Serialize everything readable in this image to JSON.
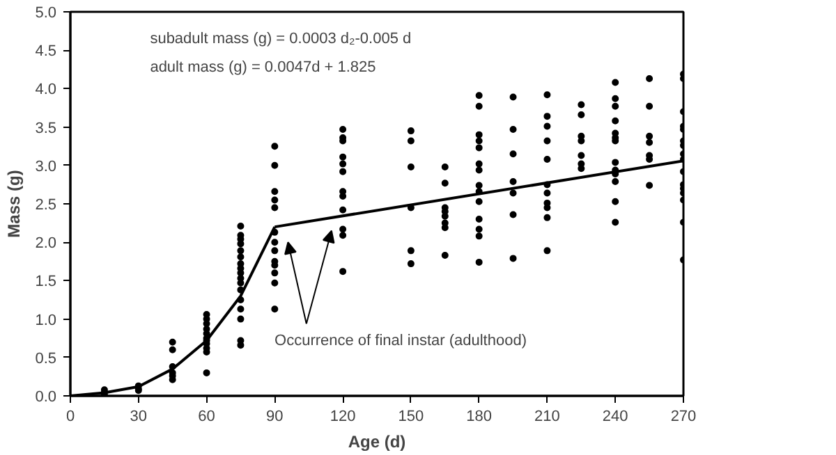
{
  "chart_data": {
    "type": "scatter",
    "xlabel": "Age (d)",
    "ylabel": "Mass (g)",
    "xlim": [
      0,
      270
    ],
    "ylim": [
      0,
      5
    ],
    "xticks": [
      0,
      30,
      60,
      90,
      120,
      150,
      180,
      210,
      240,
      270
    ],
    "yticks": [
      {
        "value": 0,
        "label": "0.0"
      },
      {
        "value": 0.5,
        "label": "0.5"
      },
      {
        "value": 1,
        "label": "1.0"
      },
      {
        "value": 1.5,
        "label": "1.5"
      },
      {
        "value": 2,
        "label": "2.0"
      },
      {
        "value": 2.5,
        "label": "2.5"
      },
      {
        "value": 3,
        "label": "3.0"
      },
      {
        "value": 3.5,
        "label": "3.5"
      },
      {
        "value": 4,
        "label": "4.0"
      },
      {
        "value": 4.5,
        "label": "4.5"
      },
      {
        "value": 5,
        "label": "5.0"
      }
    ],
    "grid": false,
    "annotations": [
      {
        "text": "subadult mass (g) = 0.0003 d₂-0.005 d"
      },
      {
        "text": "adult mass (g) = 0.0047d + 1.825"
      },
      "Occurrence of final instar (adulthood)"
    ],
    "series": [
      {
        "marker": "circle",
        "color": "#000000",
        "x": [
          15,
          15,
          15,
          30,
          30,
          30,
          45,
          45,
          45,
          45,
          45,
          45,
          60,
          60,
          60,
          60,
          60,
          60,
          60,
          60,
          60,
          60,
          60,
          75,
          75,
          75,
          75,
          75,
          75,
          75,
          75,
          75,
          75,
          75,
          75,
          75,
          75,
          75,
          75,
          75,
          90,
          90,
          90,
          90,
          90,
          90,
          90,
          90,
          90,
          90,
          90,
          90,
          90,
          120,
          120,
          120,
          120,
          120,
          120,
          120,
          120,
          120,
          120,
          120,
          120,
          150,
          150,
          150,
          150,
          150,
          150,
          165,
          165,
          165,
          165,
          165,
          165,
          165,
          165,
          180,
          180,
          180,
          180,
          180,
          180,
          180,
          180,
          180,
          180,
          180,
          180,
          180,
          180,
          195,
          195,
          195,
          195,
          195,
          195,
          195,
          210,
          210,
          210,
          210,
          210,
          210,
          210,
          210,
          210,
          210,
          210,
          225,
          225,
          225,
          225,
          225,
          225,
          225,
          240,
          240,
          240,
          240,
          240,
          240,
          240,
          240,
          240,
          240,
          240,
          240,
          240,
          255,
          255,
          255,
          255,
          255,
          255,
          255,
          270,
          270,
          270,
          270,
          270,
          270,
          270,
          270,
          270,
          270,
          270,
          270,
          270,
          270,
          270,
          270
        ],
        "values": [
          0.08,
          0.05,
          0.02,
          0.13,
          0.09,
          0.07,
          0.7,
          0.6,
          0.38,
          0.3,
          0.26,
          0.21,
          1.06,
          1.0,
          0.94,
          0.87,
          0.81,
          0.75,
          0.72,
          0.68,
          0.62,
          0.57,
          0.3,
          2.21,
          2.09,
          2.04,
          1.98,
          1.89,
          1.81,
          1.72,
          1.66,
          1.6,
          1.53,
          1.47,
          1.38,
          1.25,
          1.13,
          1.0,
          0.72,
          0.66,
          3.25,
          3.0,
          2.66,
          2.55,
          2.45,
          2.13,
          2.0,
          1.89,
          1.75,
          1.7,
          1.6,
          1.47,
          1.13,
          3.47,
          3.36,
          3.32,
          3.11,
          3.02,
          2.92,
          2.66,
          2.6,
          2.42,
          2.17,
          2.09,
          1.62,
          3.45,
          3.32,
          2.98,
          2.45,
          1.89,
          1.72,
          2.98,
          2.77,
          2.45,
          2.4,
          2.34,
          2.25,
          2.19,
          1.83,
          3.91,
          3.77,
          3.4,
          3.32,
          3.23,
          3.02,
          2.94,
          2.74,
          2.66,
          2.53,
          2.3,
          2.17,
          2.08,
          1.74,
          3.89,
          3.47,
          3.15,
          2.79,
          2.64,
          2.36,
          1.79,
          3.92,
          3.64,
          3.51,
          3.32,
          3.08,
          2.75,
          2.64,
          2.51,
          2.45,
          2.32,
          1.89,
          3.79,
          3.66,
          3.38,
          3.32,
          3.13,
          3.02,
          2.96,
          4.08,
          3.87,
          3.77,
          3.58,
          3.42,
          3.36,
          3.32,
          3.04,
          2.94,
          2.89,
          2.79,
          2.53,
          2.26,
          4.13,
          3.77,
          3.38,
          3.3,
          3.13,
          3.08,
          2.74,
          4.19,
          4.13,
          3.7,
          3.51,
          3.47,
          3.32,
          3.26,
          3.15,
          3.08,
          2.92,
          2.75,
          2.7,
          2.64,
          2.55,
          2.26,
          1.77
        ]
      },
      {
        "type": "line",
        "color": "#000000",
        "x": [
          0,
          15,
          30,
          45,
          60,
          75,
          90
        ],
        "values": [
          0,
          0.04,
          0.12,
          0.35,
          0.72,
          1.3,
          2.2
        ]
      },
      {
        "type": "line",
        "color": "#000000",
        "x": [
          90,
          270
        ],
        "values": [
          2.2,
          3.06
        ]
      }
    ]
  }
}
